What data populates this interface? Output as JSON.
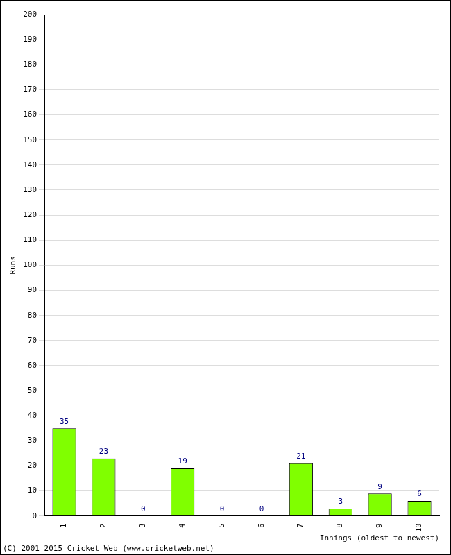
{
  "chart_data": {
    "type": "bar",
    "x_label": "Innings (oldest to newest)",
    "y_label": "Runs",
    "annotations": [
      "(C) 2001-2015 Cricket Web (www.cricketweb.net)"
    ],
    "categories": [
      "1",
      "2",
      "3",
      "4",
      "5",
      "6",
      "7",
      "8",
      "9",
      "10"
    ],
    "values": [
      35,
      23,
      0,
      19,
      0,
      0,
      21,
      3,
      9,
      6
    ],
    "color": "#80ff00",
    "ylim": [
      0,
      200
    ],
    "yticks": [
      0,
      10,
      20,
      30,
      40,
      50,
      60,
      70,
      80,
      90,
      100,
      110,
      120,
      130,
      140,
      150,
      160,
      170,
      180,
      190,
      200
    ],
    "grid": true,
    "data_labels": true
  }
}
